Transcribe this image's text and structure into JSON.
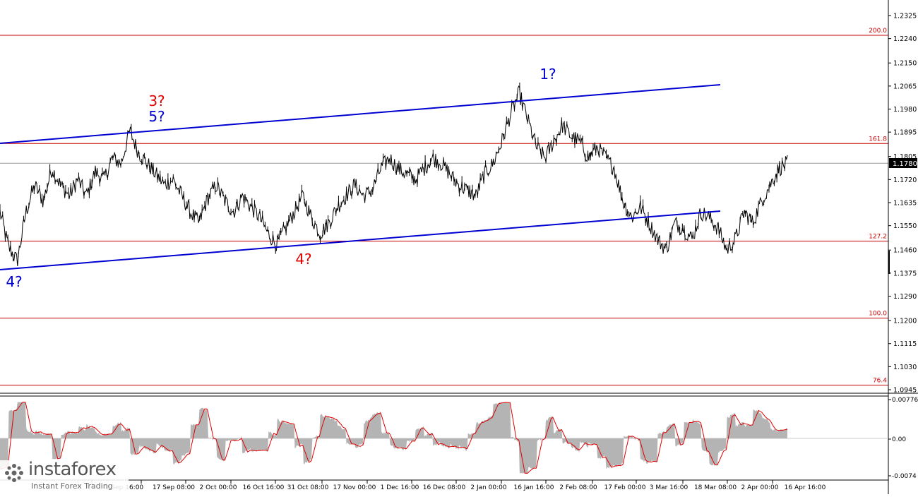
{
  "main_chart": {
    "current_price": "1.1780",
    "y_ticks": [
      "1.2325",
      "1.2240",
      "1.2150",
      "1.2065",
      "1.1980",
      "1.1895",
      "1.1805",
      "1.1720",
      "1.1635",
      "1.1550",
      "1.1460",
      "1.1375",
      "1.1290",
      "1.1200",
      "1.1115",
      "1.1030",
      "1.0945"
    ],
    "fib_levels": [
      {
        "label": "200.0",
        "price": 1.2252
      },
      {
        "label": "161.8",
        "price": 1.1853
      },
      {
        "label": "127.2",
        "price": 1.1493
      },
      {
        "label": "100.0",
        "price": 1.1209
      },
      {
        "label": "76.4",
        "price": 1.0962
      }
    ],
    "current_line_price": 1.178,
    "wave_labels": [
      {
        "text": "3?",
        "color": "#e00000"
      },
      {
        "text": "5?",
        "color": "#0000d0"
      },
      {
        "text": "1?",
        "color": "#0000d0"
      },
      {
        "text": "4?",
        "color": "#e00000"
      },
      {
        "text": "4?",
        "color": "#0000d0"
      }
    ],
    "channel_color": "#0000d0",
    "level_color": "#cc0000"
  },
  "x_axis": {
    "labels": [
      "2 Sep 16:00",
      "17 Sep 08:00",
      "2 Oct 00:00",
      "16 Oct 16:00",
      "31 Oct 08:00",
      "17 Nov 00:00",
      "1 Dec 16:00",
      "16 Dec 08:00",
      "2 Jan 00:00",
      "16 Jan 16:00",
      "2 Feb 08:00",
      "17 Feb 00:00",
      "3 Mar 16:00",
      "18 Mar 08:00",
      "2 Apr 00:00",
      "16 Apr 16:00"
    ]
  },
  "oscillator": {
    "y_ticks": [
      "0.00776",
      "0.00",
      "-0.0074"
    ],
    "histogram_color": "#b4b4b4",
    "signal_color": "#e00000"
  },
  "watermark": {
    "brand": "instaforex",
    "tagline": "Instant Forex Trading"
  },
  "chart_data": {
    "type": "line",
    "title": "",
    "series": [
      {
        "values": [
          1.16,
          1.147,
          1.142,
          1.16,
          1.17,
          1.164,
          1.176,
          1.17,
          1.166,
          1.172,
          1.166,
          1.175,
          1.172,
          1.18,
          1.178,
          1.19,
          1.182,
          1.178,
          1.174,
          1.17,
          1.172,
          1.166,
          1.16,
          1.156,
          1.165,
          1.17,
          1.164,
          1.16,
          1.166,
          1.162,
          1.158,
          1.152,
          1.148,
          1.154,
          1.16,
          1.166,
          1.158,
          1.152,
          1.156,
          1.162,
          1.166,
          1.17,
          1.166,
          1.168,
          1.176,
          1.18,
          1.176,
          1.174,
          1.172,
          1.176,
          1.18,
          1.178,
          1.174,
          1.17,
          1.168,
          1.166,
          1.174,
          1.178,
          1.186,
          1.196,
          1.204,
          1.194,
          1.184,
          1.18,
          1.186,
          1.192,
          1.188,
          1.186,
          1.18,
          1.184,
          1.18,
          1.176,
          1.164,
          1.158,
          1.162,
          1.156,
          1.15,
          1.146,
          1.156,
          1.154,
          1.15,
          1.16,
          1.158,
          1.154,
          1.146,
          1.15,
          1.16,
          1.156,
          1.164,
          1.17,
          1.176,
          1.178
        ]
      }
    ],
    "ylim": [
      1.09,
      1.238
    ],
    "fib_levels": [
      {
        "label": "200.0",
        "price": 1.2252
      },
      {
        "label": "161.8",
        "price": 1.1853
      },
      {
        "label": "127.2",
        "price": 1.1493
      },
      {
        "label": "100.0",
        "price": 1.1209
      },
      {
        "label": "76.4",
        "price": 1.0962
      }
    ],
    "oscillator_ylim": [
      -0.0074,
      0.00776
    ]
  }
}
